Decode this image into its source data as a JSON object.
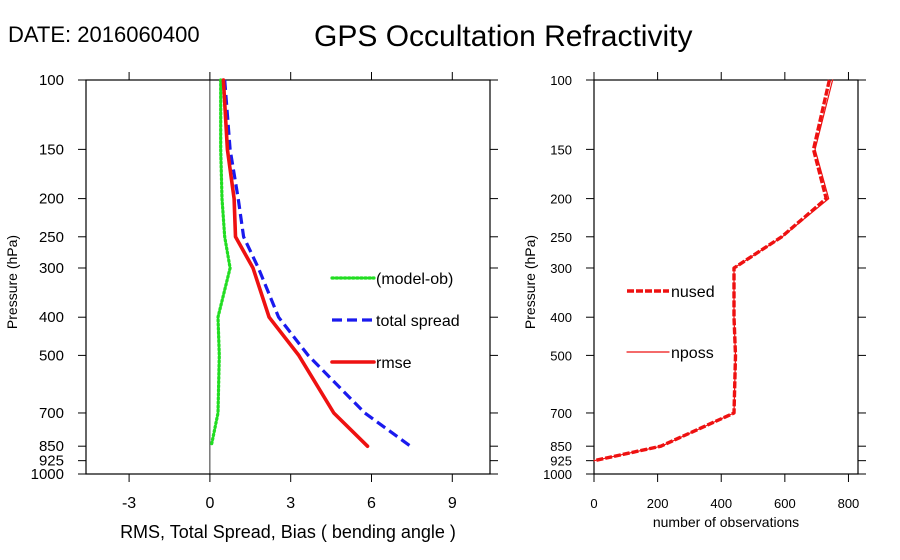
{
  "header": {
    "date_label": "DATE: 2016060400",
    "title": "GPS Occultation Refractivity"
  },
  "chart_data": [
    {
      "type": "line",
      "ylabel": "Pressure (hPa)",
      "xlabel": "RMS, Total Spread, Bias ( bending angle )",
      "y_scale": "log",
      "y_reversed": true,
      "ylim": [
        1000,
        100
      ],
      "y_ticks": [
        100,
        150,
        200,
        250,
        300,
        400,
        500,
        700,
        850,
        925,
        1000
      ],
      "xlim": [
        -4.6,
        10.4
      ],
      "x_ticks": [
        -3,
        0,
        3,
        6,
        9
      ],
      "zero_line": true,
      "legend_placement": "right-middle",
      "series": [
        {
          "name": "(model-ob)",
          "color": "#22dd22",
          "style": "dotted",
          "points": [
            [
              0.4,
              100
            ],
            [
              0.4,
              150
            ],
            [
              0.45,
              200
            ],
            [
              0.55,
              250
            ],
            [
              0.75,
              300
            ],
            [
              0.3,
              400
            ],
            [
              0.35,
              500
            ],
            [
              0.3,
              700
            ],
            [
              0.05,
              850
            ]
          ]
        },
        {
          "name": "total spread",
          "color": "#1a1aee",
          "style": "dashed",
          "points": [
            [
              0.55,
              100
            ],
            [
              0.75,
              150
            ],
            [
              1.05,
              200
            ],
            [
              1.25,
              250
            ],
            [
              1.8,
              300
            ],
            [
              2.55,
              400
            ],
            [
              3.65,
              500
            ],
            [
              5.75,
              700
            ],
            [
              7.45,
              850
            ]
          ]
        },
        {
          "name": "rmse",
          "color": "#ee1111",
          "style": "solid",
          "points": [
            [
              0.5,
              100
            ],
            [
              0.65,
              150
            ],
            [
              0.9,
              200
            ],
            [
              0.95,
              250
            ],
            [
              1.6,
              300
            ],
            [
              2.2,
              400
            ],
            [
              3.3,
              500
            ],
            [
              4.6,
              700
            ],
            [
              5.85,
              850
            ]
          ]
        }
      ]
    },
    {
      "type": "line",
      "ylabel": "Pressure (hPa)",
      "xlabel": "number of observations",
      "y_scale": "log",
      "y_reversed": true,
      "ylim": [
        1000,
        100
      ],
      "y_ticks": [
        100,
        150,
        200,
        250,
        300,
        400,
        500,
        700,
        850,
        925,
        1000
      ],
      "xlim": [
        0,
        830
      ],
      "x_ticks": [
        0,
        200,
        400,
        600,
        800
      ],
      "legend_placement": "left-middle",
      "series": [
        {
          "name": "nused",
          "color": "#ee1111",
          "style": "dashed-thick",
          "points": [
            [
              740,
              100
            ],
            [
              690,
              150
            ],
            [
              730,
              200
            ],
            [
              590,
              250
            ],
            [
              440,
              300
            ],
            [
              440,
              400
            ],
            [
              445,
              500
            ],
            [
              440,
              700
            ],
            [
              210,
              850
            ],
            [
              0,
              925
            ]
          ]
        },
        {
          "name": "nposs",
          "color": "#ee1111",
          "style": "thin",
          "points": [
            [
              750,
              100
            ],
            [
              695,
              150
            ],
            [
              738,
              200
            ],
            [
              592,
              250
            ],
            [
              440,
              300
            ],
            [
              440,
              400
            ],
            [
              445,
              500
            ],
            [
              440,
              700
            ],
            [
              212,
              850
            ],
            [
              0,
              925
            ]
          ]
        }
      ]
    }
  ]
}
